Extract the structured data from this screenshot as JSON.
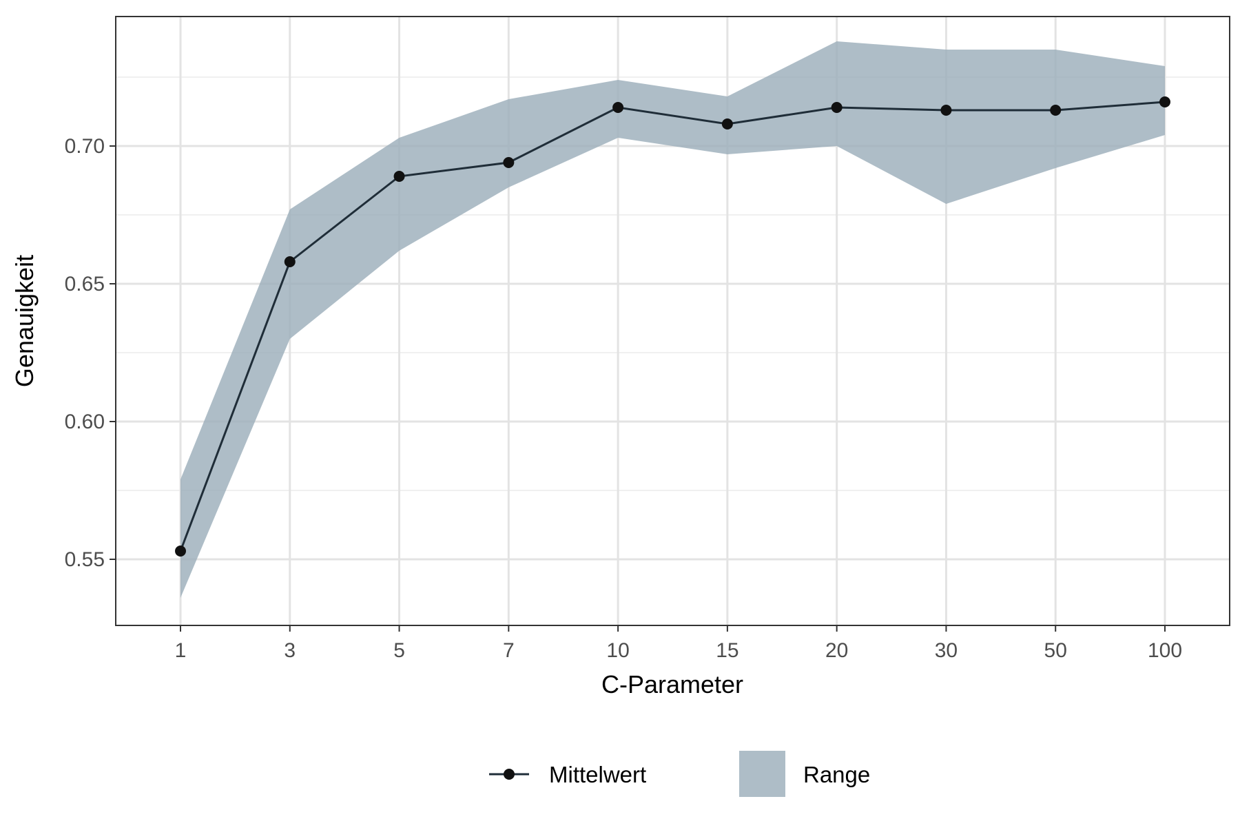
{
  "chart_data": {
    "type": "line",
    "xlabel": "C-Parameter",
    "ylabel": "Genauigkeit",
    "categories": [
      "1",
      "3",
      "5",
      "7",
      "10",
      "15",
      "20",
      "30",
      "50",
      "100"
    ],
    "ylim": [
      0.526,
      0.747
    ],
    "yticks": [
      0.55,
      0.6,
      0.65,
      0.7
    ],
    "ytick_labels": [
      "0.55",
      "0.60",
      "0.65",
      "0.70"
    ],
    "grid": true,
    "legend_position": "bottom",
    "series": [
      {
        "name": "Mittelwert",
        "kind": "line-with-points",
        "color": "#1f2d38",
        "values": [
          0.553,
          0.658,
          0.689,
          0.694,
          0.714,
          0.708,
          0.714,
          0.713,
          0.713,
          0.716
        ]
      },
      {
        "name": "Range",
        "kind": "ribbon",
        "color": "#9aacb9",
        "lower": [
          0.536,
          0.63,
          0.662,
          0.685,
          0.703,
          0.697,
          0.7,
          0.679,
          0.692,
          0.704
        ],
        "upper": [
          0.579,
          0.677,
          0.703,
          0.717,
          0.724,
          0.718,
          0.738,
          0.735,
          0.735,
          0.729
        ]
      }
    ]
  }
}
